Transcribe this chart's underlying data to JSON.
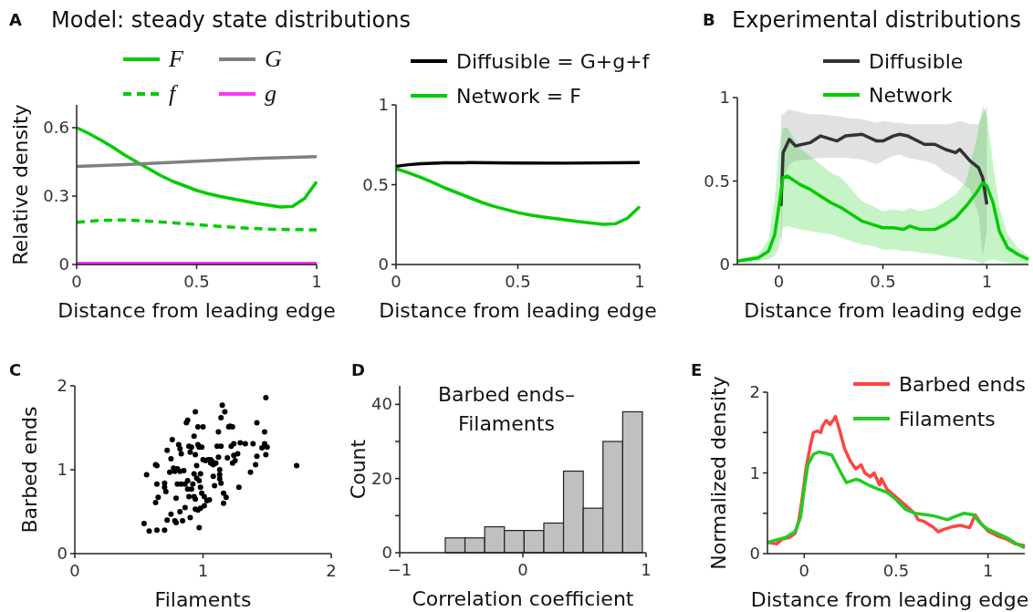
{
  "chart_data": [
    {
      "type": "line",
      "title": "Model: steady state distributions",
      "xlabel": "Distance from leading edge",
      "ylabel": "Relative density",
      "annotations": [
        "A"
      ],
      "xlim": [
        0,
        1
      ],
      "xticks": [
        0,
        0.5,
        1
      ],
      "ylim": [
        0,
        0.7
      ],
      "yticks": [
        0,
        0.3,
        0.6
      ],
      "legend": "top",
      "series": [
        {
          "name": "F",
          "color": "#00cc00",
          "x": [
            0,
            0.05,
            0.1,
            0.15,
            0.2,
            0.25,
            0.3,
            0.35,
            0.4,
            0.45,
            0.5,
            0.55,
            0.6,
            0.65,
            0.7,
            0.75,
            0.8,
            0.85,
            0.9,
            0.95,
            1
          ],
          "values": [
            0.6,
            0.575,
            0.546,
            0.515,
            0.48,
            0.45,
            0.42,
            0.39,
            0.365,
            0.345,
            0.325,
            0.31,
            0.298,
            0.288,
            0.278,
            0.268,
            0.26,
            0.252,
            0.255,
            0.29,
            0.363
          ]
        },
        {
          "name": "G",
          "color": "#808080",
          "x": [
            0,
            0.1,
            0.2,
            0.3,
            0.4,
            0.5,
            0.6,
            0.7,
            0.8,
            0.9,
            1
          ],
          "values": [
            0.43,
            0.434,
            0.438,
            0.443,
            0.448,
            0.453,
            0.458,
            0.463,
            0.467,
            0.47,
            0.473
          ]
        },
        {
          "name": "f",
          "color": "#00cc00",
          "line_style": "dashed",
          "x": [
            0,
            0.1,
            0.2,
            0.3,
            0.4,
            0.5,
            0.6,
            0.7,
            0.8,
            0.9,
            1
          ],
          "values": [
            0.185,
            0.194,
            0.195,
            0.19,
            0.183,
            0.175,
            0.167,
            0.16,
            0.155,
            0.153,
            0.152
          ]
        },
        {
          "name": "g",
          "color": "#ff33ff",
          "x": [
            0,
            1
          ],
          "values": [
            0.005,
            0.005
          ]
        }
      ]
    },
    {
      "type": "line",
      "xlabel": "Distance from leading edge",
      "xlim": [
        0,
        1
      ],
      "xticks": [
        0,
        0.5,
        1
      ],
      "ylim": [
        0,
        1
      ],
      "yticks": [
        0,
        0.5,
        1
      ],
      "legend": "top",
      "series": [
        {
          "name": "Diffusible = G+g+f",
          "color": "#000000",
          "x": [
            0,
            0.05,
            0.1,
            0.2,
            0.3,
            0.5,
            0.7,
            1
          ],
          "values": [
            0.615,
            0.625,
            0.632,
            0.637,
            0.638,
            0.636,
            0.635,
            0.638
          ]
        },
        {
          "name": "Network  = F",
          "color": "#00cc00",
          "x": [
            0,
            0.05,
            0.1,
            0.15,
            0.2,
            0.25,
            0.3,
            0.35,
            0.4,
            0.45,
            0.5,
            0.55,
            0.6,
            0.65,
            0.7,
            0.75,
            0.8,
            0.85,
            0.9,
            0.95,
            1
          ],
          "values": [
            0.6,
            0.575,
            0.546,
            0.515,
            0.48,
            0.45,
            0.42,
            0.39,
            0.365,
            0.345,
            0.325,
            0.31,
            0.298,
            0.288,
            0.278,
            0.268,
            0.26,
            0.252,
            0.255,
            0.29,
            0.363
          ]
        }
      ]
    },
    {
      "type": "line",
      "title": "Experimental distributions",
      "xlabel": "Distance from leading edge",
      "annotations": [
        "B"
      ],
      "xlim": [
        -0.2,
        1.2
      ],
      "xticks": [
        0,
        0.5,
        1
      ],
      "ylim": [
        0,
        1
      ],
      "yticks": [
        0,
        0.5,
        1
      ],
      "legend": "top",
      "series": [
        {
          "name": "Diffusible",
          "color": "#333333",
          "x": [
            0.01,
            0.02,
            0.05,
            0.08,
            0.15,
            0.2,
            0.28,
            0.32,
            0.4,
            0.47,
            0.5,
            0.55,
            0.58,
            0.62,
            0.7,
            0.75,
            0.8,
            0.85,
            0.87,
            0.92,
            0.96,
            0.98,
            1.0
          ],
          "values": [
            0.35,
            0.67,
            0.75,
            0.71,
            0.73,
            0.77,
            0.74,
            0.77,
            0.78,
            0.74,
            0.74,
            0.77,
            0.78,
            0.77,
            0.72,
            0.72,
            0.69,
            0.67,
            0.69,
            0.62,
            0.58,
            0.52,
            0.36
          ],
          "upper": [
            0.9,
            0.9,
            0.93,
            0.92,
            0.9,
            0.9,
            0.89,
            0.88,
            0.87,
            0.85,
            0.86,
            0.85,
            0.85,
            0.84,
            0.84,
            0.84,
            0.84,
            0.85,
            0.86,
            0.84,
            0.84,
            0.9,
            0.95
          ],
          "lower": [
            0.0,
            0.5,
            0.6,
            0.62,
            0.63,
            0.64,
            0.64,
            0.64,
            0.63,
            0.6,
            0.62,
            0.65,
            0.66,
            0.64,
            0.62,
            0.6,
            0.55,
            0.52,
            0.5,
            0.45,
            0.3,
            0.05,
            0.2
          ]
        },
        {
          "name": "Network",
          "color": "#00cc00",
          "x": [
            -0.2,
            -0.1,
            -0.05,
            -0.02,
            0.0,
            0.02,
            0.04,
            0.1,
            0.15,
            0.2,
            0.25,
            0.3,
            0.35,
            0.4,
            0.45,
            0.5,
            0.55,
            0.6,
            0.63,
            0.68,
            0.75,
            0.8,
            0.85,
            0.9,
            0.95,
            0.98,
            1.0,
            1.03,
            1.06,
            1.1,
            1.15,
            1.2
          ],
          "values": [
            0.02,
            0.04,
            0.08,
            0.18,
            0.35,
            0.52,
            0.53,
            0.48,
            0.45,
            0.41,
            0.37,
            0.34,
            0.3,
            0.26,
            0.24,
            0.22,
            0.22,
            0.21,
            0.23,
            0.21,
            0.21,
            0.24,
            0.28,
            0.35,
            0.43,
            0.49,
            0.47,
            0.37,
            0.2,
            0.1,
            0.06,
            0.03
          ],
          "upper": [
            0.03,
            0.06,
            0.15,
            0.4,
            0.7,
            0.82,
            0.82,
            0.7,
            0.65,
            0.6,
            0.55,
            0.52,
            0.45,
            0.38,
            0.35,
            0.32,
            0.33,
            0.32,
            0.34,
            0.32,
            0.34,
            0.38,
            0.42,
            0.5,
            0.75,
            0.95,
            0.9,
            0.6,
            0.35,
            0.18,
            0.1,
            0.05
          ],
          "lower": [
            0.01,
            0.02,
            0.03,
            0.05,
            0.1,
            0.22,
            0.23,
            0.21,
            0.2,
            0.19,
            0.18,
            0.16,
            0.14,
            0.12,
            0.11,
            0.09,
            0.09,
            0.08,
            0.08,
            0.07,
            0.06,
            0.05,
            0.04,
            0.03,
            0.02,
            0.0,
            0.02,
            0.03,
            0.02,
            0.01,
            0.0,
            0.0
          ]
        }
      ]
    },
    {
      "type": "scatter",
      "xlabel": "Filaments",
      "ylabel": "Barbed ends",
      "annotations": [
        "C"
      ],
      "xlim": [
        0,
        2
      ],
      "xticks": [
        0,
        1,
        2
      ],
      "ylim": [
        0,
        2
      ],
      "yticks": [
        0,
        1,
        2
      ],
      "marker": "circle",
      "series": [
        {
          "color": "#000000",
          "x": [
            0.54,
            0.56,
            0.58,
            0.63,
            0.64,
            0.64,
            0.63,
            0.65,
            0.64,
            0.7,
            0.7,
            0.7,
            0.71,
            0.72,
            0.72,
            0.74,
            0.75,
            0.75,
            0.76,
            0.77,
            0.78,
            0.78,
            0.79,
            0.79,
            0.8,
            0.8,
            0.81,
            0.82,
            0.82,
            0.82,
            0.83,
            0.83,
            0.84,
            0.85,
            0.86,
            0.86,
            0.87,
            0.88,
            0.88,
            0.88,
            0.89,
            0.89,
            0.9,
            0.91,
            0.9,
            0.91,
            0.92,
            0.93,
            0.93,
            0.93,
            0.94,
            0.94,
            0.94,
            0.94,
            0.95,
            0.95,
            0.96,
            0.96,
            0.96,
            0.97,
            0.97,
            0.97,
            0.98,
            0.98,
            0.98,
            0.99,
            0.99,
            1.0,
            1.0,
            1.01,
            1.01,
            1.02,
            1.03,
            1.04,
            1.05,
            1.06,
            1.06,
            1.07,
            1.08,
            1.08,
            1.09,
            1.1,
            1.11,
            1.12,
            1.12,
            1.13,
            1.13,
            1.13,
            1.14,
            1.14,
            1.14,
            1.15,
            1.16,
            1.16,
            1.17,
            1.18,
            1.19,
            1.2,
            1.21,
            1.22,
            1.23,
            1.23,
            1.24,
            1.24,
            1.25,
            1.27,
            1.28,
            1.29,
            1.33,
            1.37,
            1.39,
            1.41,
            1.42,
            1.42,
            1.46,
            1.48,
            1.48,
            1.49,
            1.49,
            1.5,
            1.73
          ],
          "values": [
            0.36,
            0.94,
            0.27,
            1.06,
            1.05,
            0.83,
            0.61,
            0.67,
            0.28,
            0.28,
            0.84,
            0.79,
            0.74,
            1.23,
            0.4,
            0.97,
            0.47,
            1.13,
            1.36,
            1.02,
            0.98,
            0.39,
            0.66,
            0.37,
            0.83,
            1.01,
            1.3,
            0.98,
            0.5,
            1.25,
            0.83,
            1.19,
            0.39,
            0.99,
            0.55,
            0.83,
            1.56,
            1.59,
            0.77,
            0.87,
            1.28,
            0.68,
            0.43,
            1.27,
            1.21,
            0.77,
            0.83,
            0.95,
            0.68,
            1.4,
            0.65,
            0.53,
            1.69,
            1.18,
            0.9,
            1.05,
            0.52,
            1.3,
            1.51,
            0.87,
            0.31,
            1.27,
            0.54,
            0.95,
            0.79,
            1.27,
            0.72,
            1.51,
            1.12,
            0.68,
            0.57,
            1.11,
            0.63,
            1.12,
            0.64,
            1.08,
            1.12,
            1.1,
            1.06,
            0.92,
            0.81,
            1.08,
            1.28,
            1.15,
            1.45,
            0.94,
            0.89,
            1.0,
            0.84,
            1.62,
            1.28,
            1.77,
            0.72,
            0.6,
            1.69,
            0.67,
            1.14,
            1.51,
            1.52,
            1.28,
            1.08,
            1.51,
            1.31,
            1.17,
            1.11,
            1.19,
            0.79,
            1.32,
            1.31,
            0.97,
            1.31,
            1.06,
            1.16,
            1.56,
            1.26,
            1.45,
            1.31,
            1.18,
            1.86,
            1.27,
            1.05
          ]
        }
      ]
    },
    {
      "type": "histogram",
      "title": "Barbed ends–\nFilaments",
      "xlabel": "Correlation coefficient",
      "ylabel": "Count",
      "annotations": [
        "D"
      ],
      "xlim": [
        -1,
        1
      ],
      "xticks": [
        {
          "value": -1,
          "label": "−1"
        },
        0,
        1
      ],
      "ylim": [
        0,
        45
      ],
      "yticks": [
        0,
        {
          "value": 10,
          "label": null
        },
        20,
        {
          "value": 30,
          "label": null
        },
        40
      ],
      "color": "#c0c0c0",
      "bins": [
        -0.63,
        -0.47,
        -0.31,
        -0.15,
        0.01,
        0.17,
        0.33,
        0.49,
        0.65,
        0.81,
        0.97
      ],
      "values": [
        4,
        4,
        7,
        6,
        6,
        8,
        22,
        12,
        30,
        38
      ]
    },
    {
      "type": "line",
      "xlabel": "Distance from leading edge",
      "ylabel": "Normalized density",
      "annotations": [
        "E"
      ],
      "xlim": [
        -0.2,
        1.2
      ],
      "xticks": [
        0,
        0.5,
        1
      ],
      "ylim": [
        0,
        2
      ],
      "yticks": [
        0,
        {
          "value": 0.5,
          "label": null
        },
        1,
        {
          "value": 1.5,
          "label": null
        },
        2
      ],
      "legend": "top right",
      "series": [
        {
          "name": "Barbed ends",
          "color": "#ff4444",
          "x": [
            -0.2,
            -0.15,
            -0.12,
            -0.08,
            -0.05,
            -0.03,
            -0.01,
            0.01,
            0.03,
            0.05,
            0.07,
            0.09,
            0.1,
            0.12,
            0.14,
            0.16,
            0.17,
            0.19,
            0.22,
            0.25,
            0.28,
            0.31,
            0.33,
            0.36,
            0.38,
            0.41,
            0.42,
            0.45,
            0.5,
            0.55,
            0.6,
            0.62,
            0.65,
            0.7,
            0.73,
            0.76,
            0.8,
            0.85,
            0.9,
            0.93,
            0.96,
            1.0,
            1.05,
            1.1,
            1.15,
            1.2
          ],
          "values": [
            0.14,
            0.12,
            0.18,
            0.2,
            0.25,
            0.4,
            0.7,
            1.05,
            1.3,
            1.5,
            1.52,
            1.5,
            1.58,
            1.65,
            1.6,
            1.66,
            1.7,
            1.55,
            1.3,
            1.15,
            1.05,
            1.1,
            1.0,
            0.95,
            1.0,
            0.85,
            0.93,
            0.8,
            0.7,
            0.6,
            0.5,
            0.42,
            0.4,
            0.33,
            0.27,
            0.3,
            0.33,
            0.35,
            0.32,
            0.48,
            0.38,
            0.28,
            0.22,
            0.18,
            0.12,
            0.1
          ]
        },
        {
          "name": "Filaments",
          "color": "#22cc22",
          "x": [
            -0.2,
            -0.1,
            -0.05,
            -0.02,
            0.0,
            0.02,
            0.05,
            0.08,
            0.12,
            0.15,
            0.2,
            0.23,
            0.28,
            0.3,
            0.35,
            0.4,
            0.45,
            0.5,
            0.55,
            0.6,
            0.7,
            0.78,
            0.82,
            0.87,
            0.92,
            0.97,
            1.0,
            1.05,
            1.1,
            1.15,
            1.2
          ],
          "values": [
            0.14,
            0.2,
            0.27,
            0.45,
            0.8,
            1.1,
            1.23,
            1.26,
            1.24,
            1.22,
            1.0,
            0.88,
            0.92,
            0.91,
            0.85,
            0.8,
            0.76,
            0.67,
            0.55,
            0.5,
            0.47,
            0.42,
            0.46,
            0.5,
            0.48,
            0.35,
            0.3,
            0.25,
            0.2,
            0.13,
            0.07
          ]
        }
      ]
    }
  ]
}
